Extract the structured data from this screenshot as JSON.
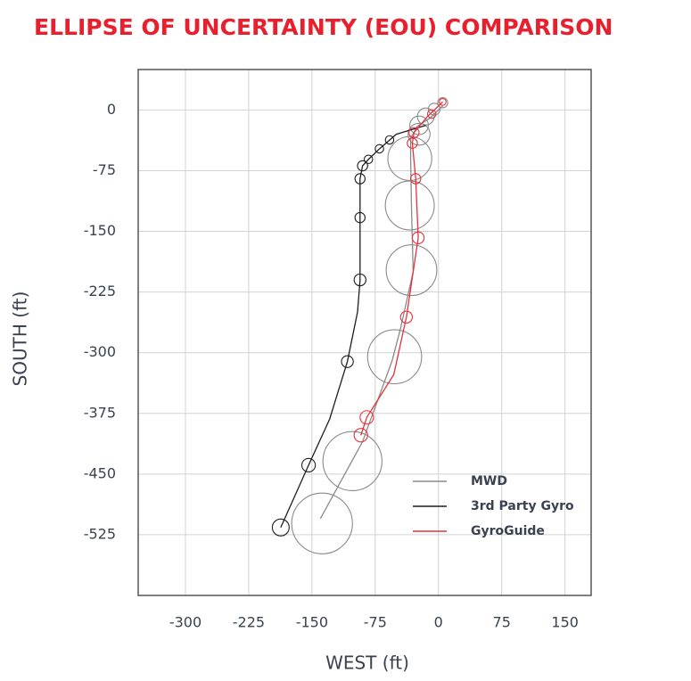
{
  "chart_data": {
    "type": "scatter",
    "title": "ELLIPSE OF UNCERTAINTY (EOU) COMPARISON",
    "x_label": "WEST (ft)",
    "y_label": "SOUTH (ft)",
    "xlim": [
      -356,
      181
    ],
    "ylim": [
      -600,
      50
    ],
    "xticks": [
      -300,
      -225,
      -150,
      -75,
      0,
      75,
      150
    ],
    "yticks": [
      0,
      -75,
      -150,
      -225,
      -300,
      -375,
      -450,
      -525
    ],
    "grid": true,
    "legend": "lower right",
    "series": [
      {
        "name": "MWD",
        "color": "#8a8a8a",
        "x": [
          5,
          -10,
          -25,
          -33,
          -33,
          -32,
          -30,
          -45,
          -55,
          -90,
          -140
        ],
        "values": [
          5,
          -10,
          -20,
          -35,
          -60,
          -120,
          -200,
          -270,
          -310,
          -410,
          -505
        ],
        "markers": {
          "x": [
            5,
            -5,
            -15,
            -23,
            -23,
            -34,
            -34,
            -32,
            -52,
            -102,
            -138
          ],
          "values": [
            9,
            1,
            -8,
            -19,
            -30,
            -60,
            -118,
            -198,
            -305,
            -434,
            -511
          ],
          "sizes": [
            6,
            7,
            10,
            11,
            13,
            26,
            29,
            30,
            32,
            35,
            36
          ]
        }
      },
      {
        "name": "3rd Party Gyro",
        "color": "#1e1e1e",
        "x": [
          -15,
          -50,
          -70,
          -83,
          -90,
          -93,
          -93,
          -93,
          -96,
          -108,
          -129,
          -154,
          -187
        ],
        "values": [
          -19,
          -30,
          -48,
          -61,
          -69,
          -85,
          -134,
          -211,
          -250,
          -311,
          -382,
          -439,
          -516
        ],
        "markers": {
          "x": [
            -58,
            -70,
            -83,
            -90,
            -93,
            -93,
            -93,
            -108,
            -154,
            -187
          ],
          "values": [
            -37,
            -48,
            -61,
            -69,
            -85,
            -133,
            -210,
            -311,
            -439,
            -516
          ],
          "sizes": [
            5,
            5,
            5,
            6,
            6,
            6,
            7,
            7,
            8,
            10
          ]
        }
      },
      {
        "name": "GyroGuide",
        "color": "#e8313a",
        "x": [
          5,
          -13,
          -29,
          -31,
          -27,
          -24,
          -38,
          -53,
          -85,
          -92
        ],
        "values": [
          10,
          -8,
          -28,
          -41,
          -85,
          -158,
          -256,
          -327,
          -380,
          -402
        ],
        "markers": {
          "x": [
            5,
            -8,
            -29,
            -31,
            -27,
            -24,
            -38,
            -85,
            -92
          ],
          "values": [
            10,
            -5,
            -28,
            -41,
            -85,
            -158,
            -256,
            -380,
            -402
          ],
          "sizes": [
            4,
            5,
            6,
            6,
            6,
            7,
            7,
            8,
            8
          ]
        }
      }
    ]
  }
}
